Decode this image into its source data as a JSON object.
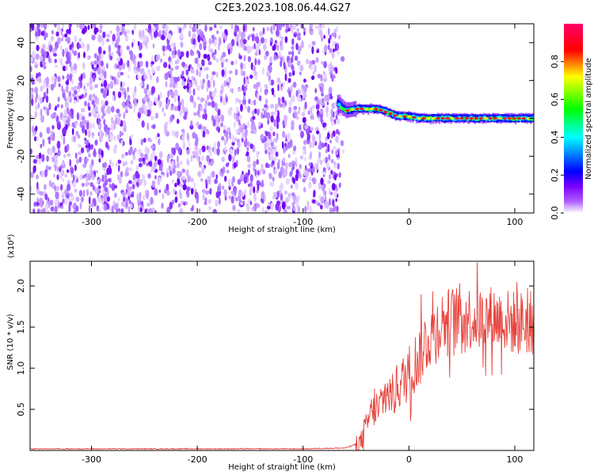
{
  "title": "C2E3.2023.108.06.44.G27",
  "chart_data": [
    {
      "type": "heatmap",
      "xlabel": "Height of straight line (km)",
      "ylabel": "Frequency (Hz)",
      "xlim": [
        -358,
        118
      ],
      "ylim": [
        -50,
        50
      ],
      "xticks": [
        -300,
        -200,
        -100,
        0,
        100
      ],
      "yticks": [
        -40,
        -20,
        0,
        20,
        40
      ],
      "noise_region_x": [
        -358,
        -65
      ],
      "signal_trace": {
        "x": [
          -68,
          -60,
          -50,
          -40,
          -30,
          -20,
          -10,
          0,
          10,
          20,
          30,
          40,
          50,
          60,
          70,
          80,
          90,
          100,
          110,
          118
        ],
        "frequency": [
          8,
          4,
          5,
          5,
          5,
          3,
          1,
          1,
          0,
          0,
          0,
          0,
          0,
          0,
          0,
          0,
          0,
          0,
          0,
          0
        ]
      },
      "colorbar": {
        "label": "Normalized spectral amplitude",
        "range": [
          0.0,
          1.0
        ],
        "ticks": [
          0.0,
          0.2,
          0.4,
          0.6,
          0.8
        ],
        "colors": [
          "#ffffff",
          "#8b00ff",
          "#0000ff",
          "#00ffff",
          "#00ff00",
          "#ffff00",
          "#ff0000",
          "#ff0066"
        ]
      },
      "grid": false
    },
    {
      "type": "line",
      "xlabel": "Height of straight line (km)",
      "ylabel": "SNR (10 * v/v)",
      "yunit": "(x10⁴)",
      "xlim": [
        -358,
        118
      ],
      "ylim": [
        0.0,
        2.3
      ],
      "xticks": [
        -300,
        -200,
        -100,
        0,
        100
      ],
      "yticks": [
        0.5,
        1.0,
        1.5,
        2.0
      ],
      "color": "#e8423b",
      "series": [
        {
          "x": [
            -358,
            -300,
            -200,
            -100,
            -60,
            -45,
            -40,
            -35,
            -30,
            -25,
            -20,
            -15,
            -10,
            -5,
            0,
            5,
            10,
            15,
            20,
            30,
            40,
            50,
            60,
            70,
            80,
            90,
            100,
            110,
            118
          ],
          "y": [
            0.02,
            0.02,
            0.02,
            0.02,
            0.03,
            0.1,
            0.3,
            0.5,
            0.45,
            0.6,
            0.7,
            0.65,
            0.8,
            0.85,
            0.95,
            1.05,
            1.15,
            1.3,
            1.4,
            1.55,
            1.6,
            1.65,
            1.6,
            1.6,
            1.62,
            1.58,
            1.55,
            1.55,
            1.55
          ]
        }
      ],
      "grid": false
    }
  ]
}
